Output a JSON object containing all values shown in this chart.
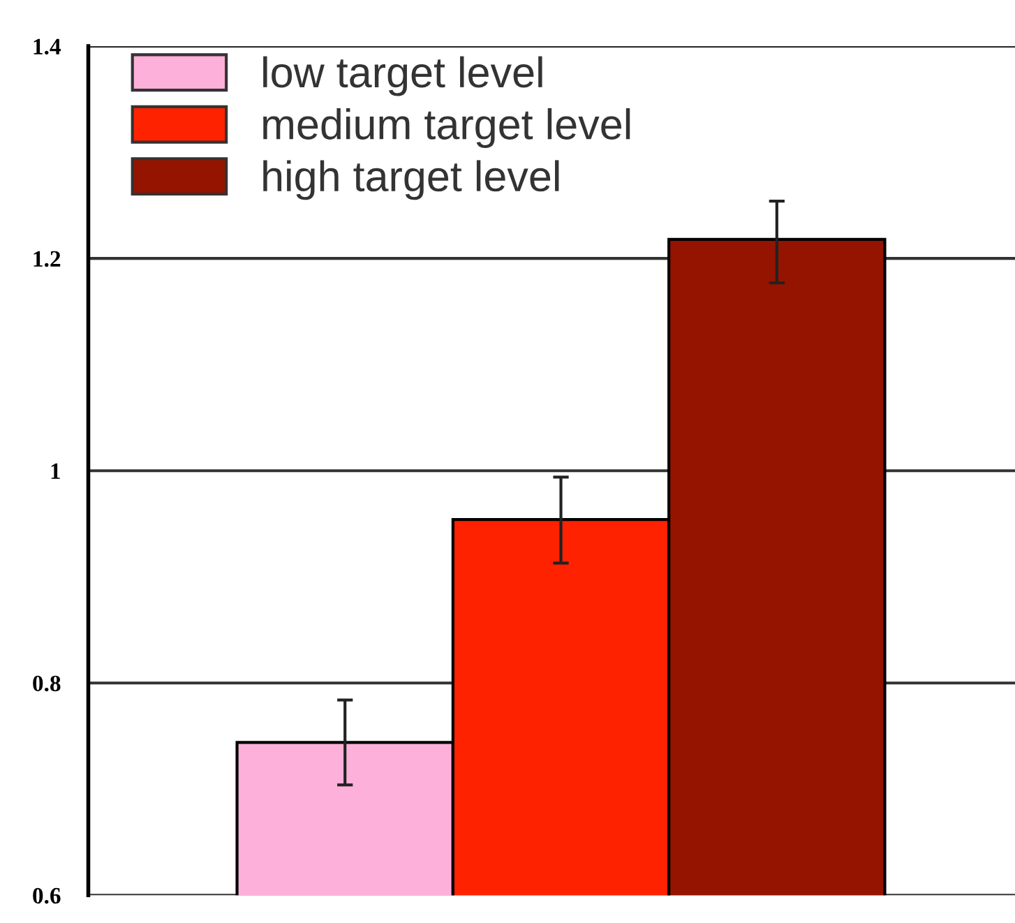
{
  "chart_data": {
    "type": "bar",
    "categories": [
      null
    ],
    "series": [
      {
        "name": "low target level",
        "color": "#fdb0d9",
        "values": [
          0.744
        ],
        "errors": [
          [
            0.704,
            0.784
          ]
        ]
      },
      {
        "name": "medium target level",
        "color": "#ff2200",
        "values": [
          0.954
        ],
        "errors": [
          [
            0.913,
            0.994
          ]
        ]
      },
      {
        "name": "high target level",
        "color": "#941400",
        "values": [
          1.218
        ],
        "errors": [
          [
            1.177,
            1.254
          ]
        ]
      }
    ],
    "ylim": [
      0.6,
      1.4
    ],
    "yticks": [
      0.6,
      0.8,
      1,
      1.2,
      1.4
    ],
    "grid": "y",
    "legend": "top left"
  }
}
